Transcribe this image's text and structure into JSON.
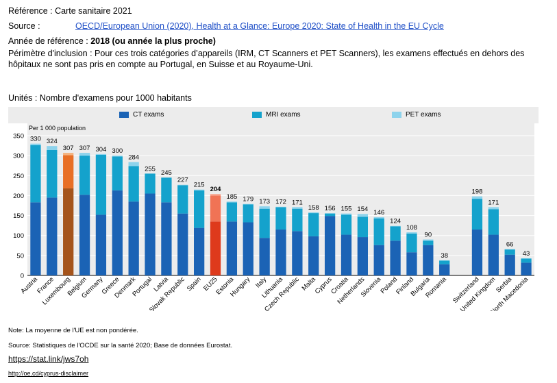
{
  "header": {
    "ref_label": "Référence :",
    "ref_value": "Carte sanitaire 2021",
    "source_label": "Source :",
    "source_link": "OECD/European Union (2020), Health at a Glance: Europe 2020: State of Health in the EU Cycle",
    "year_label": "Année de référence :",
    "year_value": "2018 (ou année la plus proche)",
    "scope_line1": "Périmètre d'inclusion : Pour ces trois catégories d’appareils (IRM, CT Scanners et PET Scanners), les examens effectués en dehors des",
    "scope_line2": "hôpitaux ne sont pas pris en compte au Portugal, en Suisse et au Royaume-Uni.",
    "units": "Unités : Nombre d'examens pour 1000 habitants"
  },
  "footer": {
    "note": "Note: La moyenne de l'UE est non pondérée.",
    "source": "Source: Statistiques de l'OCDE sur la santé 2020; Base de données Eurostat.",
    "statlink": "https://stat.link/jws7oh",
    "disclaimer": "http://oe.cd/cyprus-disclaimer"
  },
  "chart_data": {
    "type": "bar",
    "stacked": true,
    "ylabel": "Per 1 000 population",
    "ylim": [
      0,
      350
    ],
    "yticks": [
      0,
      50,
      100,
      150,
      200,
      250,
      300,
      350
    ],
    "grid": true,
    "legend_position": "top",
    "colors": {
      "CT exams": "#1b63b5",
      "MRI exams": "#14a2cc",
      "PET exams": "#8dd3ec"
    },
    "highlight_colors": {
      "Luxembourg": [
        "#a5541b",
        "#e86f25",
        "#f4b27e"
      ],
      "EU25": [
        "#de3a1c",
        "#f07355",
        "#f7a993"
      ]
    },
    "series_names": [
      "CT exams",
      "MRI exams",
      "PET exams"
    ],
    "categories": [
      "Austria",
      "France",
      "Luxembourg",
      "Belgium",
      "Germany",
      "Greece",
      "Denmark",
      "Portugal",
      "Latvia",
      "Slovak Republic",
      "Spain",
      "EU25",
      "Estonia",
      "Hungary",
      "Italy",
      "Lithuania",
      "Czech Republic",
      "Malta",
      "Cyprus",
      "Croatia",
      "Netherlands",
      "Slovenia",
      "Poland",
      "Finland",
      "Bulgaria",
      "Romania",
      "",
      "Switzerland",
      "United Kingdom",
      "Serbia",
      "North Macedonia"
    ],
    "series": [
      {
        "name": "CT exams",
        "values": [
          183,
          195,
          218,
          202,
          152,
          213,
          185,
          205,
          183,
          155,
          119,
          135,
          135,
          133,
          94,
          115,
          111,
          98,
          149,
          102,
          96,
          76,
          87,
          58,
          76,
          28,
          null,
          115,
          102,
          52,
          32
        ]
      },
      {
        "name": "MRI exams",
        "values": [
          143,
          119,
          83,
          98,
          150,
          85,
          89,
          50,
          62,
          71,
          94,
          65,
          48,
          45,
          73,
          56,
          56,
          58,
          6,
          50,
          51,
          67,
          36,
          47,
          11,
          9,
          null,
          77,
          64,
          13,
          10
        ]
      },
      {
        "name": "PET exams",
        "values": [
          4,
          10,
          6,
          7,
          2,
          2,
          10,
          0,
          0,
          1,
          2,
          4,
          2,
          1,
          6,
          1,
          4,
          2,
          1,
          3,
          7,
          3,
          1,
          3,
          3,
          1,
          null,
          6,
          5,
          1,
          1
        ]
      }
    ],
    "totals": [
      330,
      324,
      307,
      307,
      304,
      300,
      284,
      255,
      245,
      227,
      215,
      204,
      185,
      179,
      173,
      172,
      171,
      158,
      156,
      155,
      154,
      146,
      124,
      108,
      90,
      38,
      null,
      198,
      171,
      66,
      43
    ]
  }
}
